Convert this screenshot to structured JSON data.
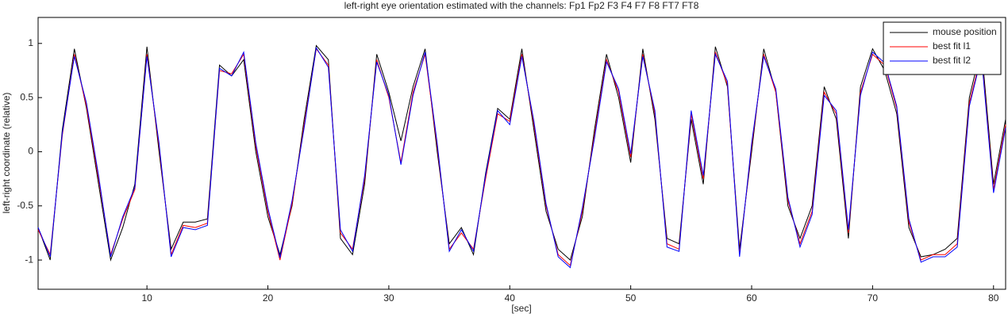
{
  "chart_data": {
    "type": "line",
    "title": "left-right eye orientation estimated with the channels: Fp1 Fp2 F3 F4 F7 F8 FT7 FT8",
    "xlabel": "[sec]",
    "ylabel": "left-right coordinate (relative)",
    "x": [
      1,
      2,
      3,
      4,
      5,
      6,
      7,
      8,
      9,
      10,
      11,
      12,
      13,
      14,
      15,
      16,
      17,
      18,
      19,
      20,
      21,
      22,
      23,
      24,
      25,
      26,
      27,
      28,
      29,
      30,
      31,
      32,
      33,
      34,
      35,
      36,
      37,
      38,
      39,
      40,
      41,
      42,
      43,
      44,
      45,
      46,
      47,
      48,
      49,
      50,
      51,
      52,
      53,
      54,
      55,
      56,
      57,
      58,
      59,
      60,
      61,
      62,
      63,
      64,
      65,
      66,
      67,
      68,
      69,
      70,
      71,
      72,
      73,
      74,
      75,
      76,
      77,
      78,
      79,
      80,
      81
    ],
    "series": [
      {
        "name": "mouse position",
        "color": "#000000",
        "values": [
          -0.7,
          -1.0,
          0.2,
          0.95,
          0.4,
          -0.3,
          -1.0,
          -0.7,
          -0.3,
          0.97,
          0.0,
          -0.9,
          -0.65,
          -0.65,
          -0.62,
          0.8,
          0.7,
          0.85,
          0.0,
          -0.6,
          -0.95,
          -0.5,
          0.3,
          0.98,
          0.85,
          -0.8,
          -0.95,
          -0.3,
          0.9,
          0.55,
          0.1,
          0.6,
          0.95,
          0.0,
          -0.85,
          -0.7,
          -0.95,
          -0.2,
          0.4,
          0.3,
          0.95,
          0.2,
          -0.55,
          -0.9,
          -1.0,
          -0.6,
          0.2,
          0.9,
          0.5,
          -0.1,
          0.95,
          0.3,
          -0.8,
          -0.85,
          0.3,
          -0.3,
          0.97,
          0.6,
          -0.9,
          0.0,
          0.95,
          0.55,
          -0.5,
          -0.8,
          -0.5,
          0.6,
          0.3,
          -0.8,
          0.6,
          0.95,
          0.75,
          0.35,
          -0.7,
          -0.97,
          -0.95,
          -0.9,
          -0.8,
          0.5,
          0.97,
          -0.3,
          0.3
        ]
      },
      {
        "name": "best fit l1",
        "color": "#ff0000",
        "values": [
          -0.72,
          -0.95,
          0.15,
          0.9,
          0.42,
          -0.25,
          -0.95,
          -0.62,
          -0.35,
          0.9,
          0.05,
          -0.95,
          -0.68,
          -0.7,
          -0.66,
          0.75,
          0.72,
          0.9,
          0.05,
          -0.55,
          -1.0,
          -0.48,
          0.25,
          0.95,
          0.8,
          -0.75,
          -0.9,
          -0.25,
          0.85,
          0.5,
          -0.1,
          0.55,
          0.9,
          0.05,
          -0.9,
          -0.75,
          -0.9,
          -0.25,
          0.35,
          0.28,
          0.9,
          0.25,
          -0.5,
          -0.95,
          -1.05,
          -0.55,
          0.15,
          0.85,
          0.55,
          -0.05,
          0.9,
          0.35,
          -0.85,
          -0.9,
          0.35,
          -0.25,
          0.92,
          0.62,
          -0.95,
          0.05,
          0.9,
          0.55,
          -0.45,
          -0.85,
          -0.55,
          0.55,
          0.35,
          -0.75,
          0.55,
          0.9,
          0.8,
          0.4,
          -0.65,
          -1.0,
          -0.95,
          -0.95,
          -0.85,
          0.45,
          0.9,
          -0.35,
          0.25
        ]
      },
      {
        "name": "best fit l2",
        "color": "#0000ff",
        "values": [
          -0.7,
          -0.97,
          0.17,
          0.88,
          0.45,
          -0.22,
          -0.97,
          -0.6,
          -0.33,
          0.88,
          0.08,
          -0.97,
          -0.7,
          -0.72,
          -0.68,
          0.77,
          0.7,
          0.92,
          0.08,
          -0.52,
          -0.98,
          -0.45,
          0.22,
          0.96,
          0.78,
          -0.72,
          -0.92,
          -0.22,
          0.83,
          0.52,
          -0.12,
          0.52,
          0.92,
          0.08,
          -0.92,
          -0.72,
          -0.92,
          -0.22,
          0.38,
          0.25,
          0.88,
          0.28,
          -0.48,
          -0.97,
          -1.07,
          -0.52,
          0.12,
          0.83,
          0.58,
          -0.02,
          0.88,
          0.38,
          -0.88,
          -0.92,
          0.38,
          -0.22,
          0.9,
          0.65,
          -0.97,
          0.08,
          0.88,
          0.58,
          -0.42,
          -0.88,
          -0.58,
          0.52,
          0.38,
          -0.72,
          0.52,
          0.92,
          0.82,
          0.42,
          -0.62,
          -1.02,
          -0.97,
          -0.97,
          -0.88,
          0.42,
          0.88,
          -0.38,
          0.22
        ]
      }
    ],
    "xlim": [
      1,
      81
    ],
    "ylim": [
      -1.27,
      1.24
    ],
    "xticks": [
      10,
      20,
      30,
      40,
      50,
      60,
      70,
      80
    ],
    "yticks": [
      -1,
      -0.5,
      0,
      0.5,
      1
    ],
    "legend": "upper right"
  }
}
